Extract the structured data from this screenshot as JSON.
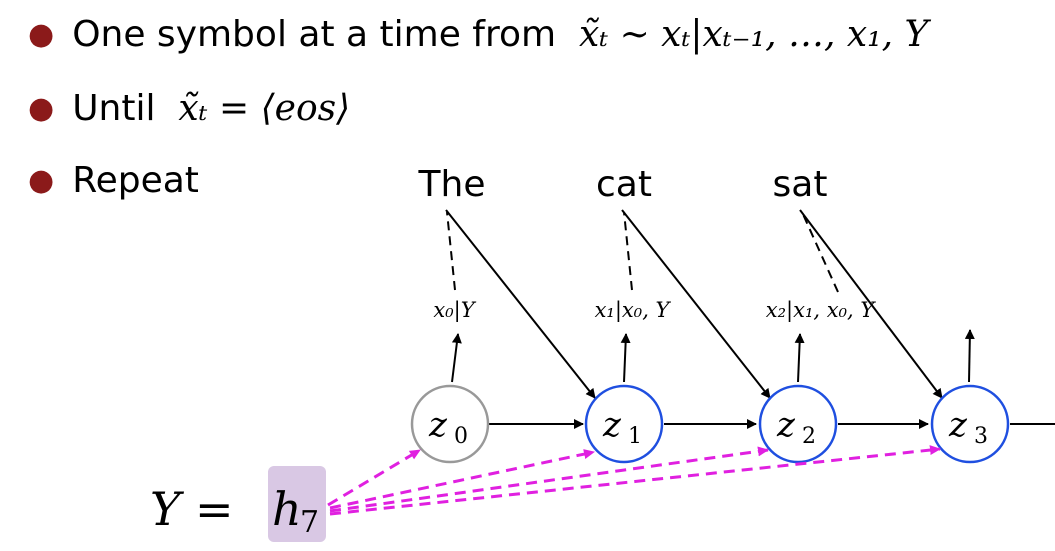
{
  "bullets": [
    {
      "text": "One symbol at a time from",
      "math": "x̃ₜ ∼ xₜ|xₜ₋₁, …, x₁, Y"
    },
    {
      "text": "Until",
      "math": "x̃ₜ = ⟨eos⟩"
    },
    {
      "text": "Repeat",
      "math": ""
    }
  ],
  "diagram": {
    "output_words": [
      "The",
      "cat",
      "sat"
    ],
    "conditionals": [
      "x₀|Y",
      "x₁|x₀, Y",
      "x₂|x₁, x₀, Y"
    ],
    "nodes": [
      {
        "label": "z",
        "sub": "0",
        "color": "#999999"
      },
      {
        "label": "z",
        "sub": "1",
        "color": "#1f4fe0"
      },
      {
        "label": "z",
        "sub": "2",
        "color": "#1f4fe0"
      },
      {
        "label": "z",
        "sub": "3",
        "color": "#1f4fe0"
      }
    ],
    "context": {
      "lhs": "Y =",
      "h": "h",
      "h_sub": "7",
      "highlight": "#d9c8e4",
      "arrow_color": "#e020e0"
    }
  }
}
